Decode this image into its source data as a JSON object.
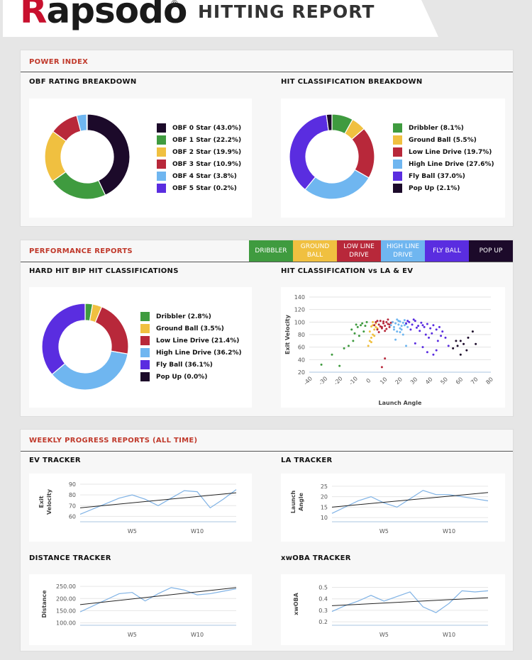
{
  "header": {
    "logo": "Rapsodo",
    "registered": "®",
    "title": "HITTING REPORT"
  },
  "colors": {
    "dribbler": "#3f9b3f",
    "ground_ball": "#f0c040",
    "low_line_drive": "#b8283a",
    "high_line_drive": "#6fb6f0",
    "fly_ball": "#5a2de0",
    "pop_up": "#1c0a2a",
    "line": "#7fb2e5",
    "trend": "#222222"
  },
  "power_index": {
    "section_title": "POWER INDEX",
    "obf": {
      "title": "OBF RATING BREAKDOWN",
      "items": [
        {
          "label": "OBF 0 Star (43.0%)",
          "value": 43.0,
          "color": "#1c0a2a"
        },
        {
          "label": "OBF 1 Star (22.2%)",
          "value": 22.2,
          "color": "#3f9b3f"
        },
        {
          "label": "OBF 2 Star (19.9%)",
          "value": 19.9,
          "color": "#f0c040"
        },
        {
          "label": "OBF 3 Star (10.9%)",
          "value": 10.9,
          "color": "#b8283a"
        },
        {
          "label": "OBF 4 Star (3.8%)",
          "value": 3.8,
          "color": "#6fb6f0"
        },
        {
          "label": "OBF 5 Star (0.2%)",
          "value": 0.2,
          "color": "#5a2de0"
        }
      ]
    },
    "hit_class": {
      "title": "HIT CLASSIFICATION BREAKDOWN",
      "items": [
        {
          "label": "Dribbler (8.1%)",
          "value": 8.1,
          "color": "#3f9b3f"
        },
        {
          "label": "Ground Ball (5.5%)",
          "value": 5.5,
          "color": "#f0c040"
        },
        {
          "label": "Low Line Drive (19.7%)",
          "value": 19.7,
          "color": "#b8283a"
        },
        {
          "label": "High Line Drive (27.6%)",
          "value": 27.6,
          "color": "#6fb6f0"
        },
        {
          "label": "Fly Ball (37.0%)",
          "value": 37.0,
          "color": "#5a2de0"
        },
        {
          "label": "Pop Up (2.1%)",
          "value": 2.1,
          "color": "#1c0a2a"
        }
      ]
    }
  },
  "performance": {
    "section_title": "PERFORMANCE REPORTS",
    "tabs": [
      {
        "label": "DRIBBLER",
        "color": "#3f9b3f"
      },
      {
        "label": "GROUND BALL",
        "color": "#f0c040"
      },
      {
        "label": "LOW LINE DRIVE",
        "color": "#b8283a"
      },
      {
        "label": "HIGH LINE DRIVE",
        "color": "#6fb6f0"
      },
      {
        "label": "FLY BALL",
        "color": "#5a2de0"
      },
      {
        "label": "POP UP",
        "color": "#1c0a2a"
      }
    ],
    "hard_hit": {
      "title": "HARD HIT BIP HIT CLASSIFICATIONS",
      "items": [
        {
          "label": "Dribbler (2.8%)",
          "value": 2.8,
          "color": "#3f9b3f"
        },
        {
          "label": "Ground Ball (3.5%)",
          "value": 3.5,
          "color": "#f0c040"
        },
        {
          "label": "Low Line Drive (21.4%)",
          "value": 21.4,
          "color": "#b8283a"
        },
        {
          "label": "High Line Drive (36.2%)",
          "value": 36.2,
          "color": "#6fb6f0"
        },
        {
          "label": "Fly Ball (36.1%)",
          "value": 36.1,
          "color": "#5a2de0"
        },
        {
          "label": "Pop Up (0.0%)",
          "value": 0.0,
          "color": "#1c0a2a"
        }
      ]
    },
    "scatter": {
      "title": "HIT CLASSIFICATION vs LA & EV",
      "xlabel": "Launch Angle",
      "ylabel": "Exit Velocity",
      "xticks": [
        -40,
        -30,
        -20,
        -10,
        0,
        10,
        20,
        30,
        40,
        50,
        60,
        70,
        80
      ],
      "yticks": [
        20,
        40,
        60,
        80,
        100,
        120,
        140
      ]
    }
  },
  "weekly": {
    "section_title": "WEEKLY PROGRESS REPORTS (ALL TIME)",
    "x_tick_labels": [
      "W5",
      "W10"
    ]
  },
  "chart_data": [
    {
      "type": "pie",
      "title": "OBF RATING BREAKDOWN",
      "categories": [
        "OBF 0 Star",
        "OBF 1 Star",
        "OBF 2 Star",
        "OBF 3 Star",
        "OBF 4 Star",
        "OBF 5 Star"
      ],
      "values": [
        43.0,
        22.2,
        19.9,
        10.9,
        3.8,
        0.2
      ]
    },
    {
      "type": "pie",
      "title": "HIT CLASSIFICATION BREAKDOWN",
      "categories": [
        "Dribbler",
        "Ground Ball",
        "Low Line Drive",
        "High Line Drive",
        "Fly Ball",
        "Pop Up"
      ],
      "values": [
        8.1,
        5.5,
        19.7,
        27.6,
        37.0,
        2.1
      ]
    },
    {
      "type": "pie",
      "title": "HARD HIT BIP HIT CLASSIFICATIONS",
      "categories": [
        "Dribbler",
        "Ground Ball",
        "Low Line Drive",
        "High Line Drive",
        "Fly Ball",
        "Pop Up"
      ],
      "values": [
        2.8,
        3.5,
        21.4,
        36.2,
        36.1,
        0.0
      ]
    },
    {
      "type": "scatter",
      "title": "HIT CLASSIFICATION vs LA & EV",
      "xlabel": "Launch Angle",
      "ylabel": "Exit Velocity",
      "xlim": [
        -40,
        80
      ],
      "ylim": [
        20,
        140
      ],
      "series": [
        {
          "name": "Dribbler",
          "x": [
            -32,
            -25,
            -20,
            -17,
            -14,
            -12,
            -10,
            -8,
            -6,
            -5,
            -4,
            -3,
            -2,
            -7,
            -9,
            -11
          ],
          "y": [
            32,
            48,
            30,
            58,
            62,
            88,
            82,
            92,
            95,
            98,
            85,
            94,
            100,
            78,
            96,
            70
          ]
        },
        {
          "name": "Ground Ball",
          "x": [
            -1,
            0,
            1,
            2,
            3,
            4,
            2,
            0,
            1,
            3,
            5,
            4,
            2,
            1
          ],
          "y": [
            62,
            70,
            75,
            80,
            88,
            92,
            95,
            85,
            68,
            78,
            90,
            98,
            100,
            93
          ]
        },
        {
          "name": "Low Line Drive",
          "x": [
            3,
            4,
            5,
            6,
            7,
            8,
            9,
            10,
            11,
            12,
            13,
            14,
            6,
            8,
            10,
            12,
            5,
            7,
            9,
            11,
            13,
            15,
            8,
            10
          ],
          "y": [
            95,
            100,
            88,
            96,
            102,
            90,
            98,
            94,
            100,
            97,
            92,
            99,
            84,
            92,
            86,
            104,
            102,
            93,
            101,
            89,
            96,
            100,
            28,
            42
          ]
        },
        {
          "name": "High Line Drive",
          "x": [
            14,
            15,
            16,
            17,
            18,
            19,
            20,
            21,
            22,
            23,
            24,
            25,
            16,
            18,
            20,
            22,
            24,
            19,
            21,
            23,
            17,
            20
          ],
          "y": [
            95,
            100,
            92,
            98,
            104,
            96,
            101,
            94,
            99,
            103,
            97,
            92,
            88,
            85,
            90,
            80,
            62,
            102,
            88,
            95,
            72,
            84
          ]
        },
        {
          "name": "Fly Ball",
          "x": [
            24,
            26,
            28,
            30,
            32,
            34,
            36,
            38,
            40,
            42,
            44,
            46,
            48,
            27,
            29,
            31,
            33,
            35,
            37,
            39,
            41,
            25,
            45,
            50,
            38,
            42,
            35,
            30,
            44,
            52,
            47
          ],
          "y": [
            98,
            100,
            96,
            102,
            94,
            99,
            92,
            97,
            90,
            95,
            88,
            92,
            85,
            88,
            104,
            91,
            86,
            95,
            80,
            75,
            82,
            102,
            70,
            75,
            52,
            48,
            60,
            66,
            55,
            62,
            78
          ]
        },
        {
          "name": "Pop Up",
          "x": [
            55,
            58,
            60,
            62,
            65,
            68,
            70,
            60,
            64,
            57
          ],
          "y": [
            58,
            62,
            48,
            65,
            75,
            85,
            65,
            70,
            55,
            70
          ]
        }
      ]
    },
    {
      "type": "line",
      "title": "EV TRACKER",
      "ylabel": "Exit Velocity",
      "x": [
        1,
        2,
        3,
        4,
        5,
        6,
        7,
        8,
        9,
        10,
        11,
        12,
        13
      ],
      "ylim": [
        55,
        92
      ],
      "yticks": [
        60,
        70,
        80,
        90
      ],
      "series": [
        {
          "values": [
            62,
            67,
            72,
            77,
            80,
            76,
            70,
            77,
            84,
            83,
            68,
            76,
            85
          ]
        }
      ],
      "trend": [
        68,
        82
      ]
    },
    {
      "type": "line",
      "title": "LA TRACKER",
      "ylabel": "Launch Angle",
      "x": [
        1,
        2,
        3,
        4,
        5,
        6,
        7,
        8,
        9,
        10,
        11,
        12,
        13
      ],
      "ylim": [
        8,
        27
      ],
      "yticks": [
        10,
        15,
        20,
        25
      ],
      "series": [
        {
          "values": [
            12,
            15,
            18,
            20,
            17,
            15,
            19,
            23,
            21,
            21,
            20,
            19,
            18
          ]
        }
      ],
      "trend": [
        15,
        22
      ]
    },
    {
      "type": "line",
      "title": "DISTANCE TRACKER",
      "ylabel": "Distance",
      "x": [
        1,
        2,
        3,
        4,
        5,
        6,
        7,
        8,
        9,
        10,
        11,
        12,
        13
      ],
      "ylim": [
        90,
        265
      ],
      "yticks": [
        100,
        150,
        200,
        250
      ],
      "series": [
        {
          "values": [
            145,
            170,
            195,
            220,
            225,
            190,
            220,
            245,
            235,
            215,
            220,
            230,
            240
          ]
        }
      ],
      "trend": [
        175,
        245
      ]
    },
    {
      "type": "line",
      "title": "xwOBA TRACKER",
      "ylabel": "xwOBA",
      "x": [
        1,
        2,
        3,
        4,
        5,
        6,
        7,
        8,
        9,
        10,
        11,
        12,
        13
      ],
      "ylim": [
        0.17,
        0.54
      ],
      "yticks": [
        0.2,
        0.3,
        0.4,
        0.5
      ],
      "series": [
        {
          "values": [
            0.29,
            0.34,
            0.38,
            0.43,
            0.38,
            0.42,
            0.46,
            0.33,
            0.28,
            0.36,
            0.47,
            0.46,
            0.47
          ]
        }
      ],
      "trend": [
        0.34,
        0.41
      ]
    }
  ],
  "trackers": [
    {
      "title": "EV TRACKER",
      "ylabel_1": "Exit",
      "ylabel_2": "Velocity"
    },
    {
      "title": "LA TRACKER",
      "ylabel_1": "Launch",
      "ylabel_2": "Angle"
    },
    {
      "title": "DISTANCE TRACKER",
      "ylabel_1": "Distance",
      "ylabel_2": ""
    },
    {
      "title": "xwOBA TRACKER",
      "ylabel_1": "xwOBA",
      "ylabel_2": ""
    }
  ]
}
